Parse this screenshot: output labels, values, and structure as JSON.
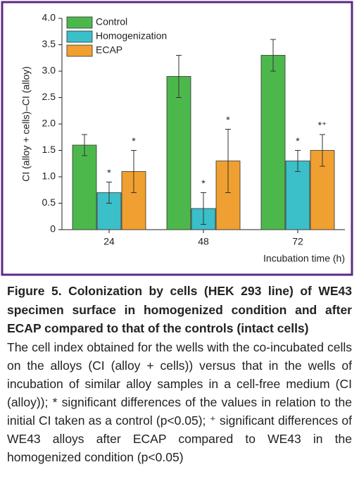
{
  "chart_data": {
    "type": "bar",
    "ylabel": "CI (alloy + cells)–CI (alloy)",
    "xlabel": "Incubation time (h)",
    "categories": [
      "24",
      "48",
      "72"
    ],
    "series": [
      {
        "name": "Control",
        "color": "#4cb84c",
        "values": [
          1.6,
          2.9,
          3.3
        ],
        "errors": [
          0.2,
          0.4,
          0.3
        ]
      },
      {
        "name": "Homogenization",
        "color": "#3bbfc8",
        "values": [
          0.7,
          0.4,
          1.3
        ],
        "errors": [
          0.2,
          0.3,
          0.2
        ],
        "annotations": [
          "*",
          "*",
          "*"
        ]
      },
      {
        "name": "ECAP",
        "color": "#f0a030",
        "values": [
          1.1,
          1.3,
          1.5
        ],
        "errors": [
          0.4,
          0.6,
          0.3
        ],
        "annotations": [
          "*",
          "*",
          "*⁺"
        ]
      }
    ],
    "ylim": [
      0,
      4
    ],
    "yticks": [
      0,
      0.5,
      {
        "value": 1,
        "label": "1.0"
      },
      1.5,
      {
        "value": 2,
        "label": "2.0"
      },
      2.5,
      {
        "value": 3,
        "label": "3.0"
      },
      3.5,
      {
        "value": 4,
        "label": "4.0"
      }
    ],
    "legend": "top-left"
  },
  "caption": {
    "title": "Figure 5. Colonization by cells (HEK 293 line) of WE43 specimen surface in homogenized condition and after ECAP compared to that of the controls (intact cells)",
    "text": "The cell index obtained for the wells with the co-incubated cells on the alloys (CI (alloy + cells)) versus that in the wells of incubation of similar alloy samples in a cell-free medium (CI (alloy)); * significant differences of the values in relation to the initial CI taken as a control (p<0.05); ⁺ significant differences of WE43 alloys after ECAP compared to WE43 in the homogenized condition (p<0.05)"
  }
}
